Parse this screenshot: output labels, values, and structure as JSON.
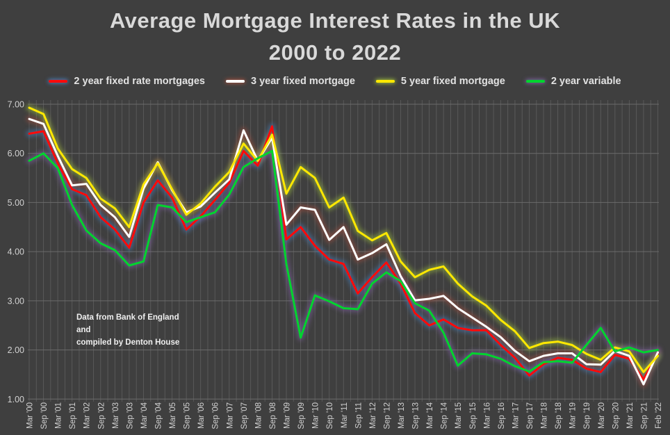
{
  "title": {
    "line1": "Average Mortgage Interest Rates in the UK",
    "line2": "2000 to 2022"
  },
  "annotation": {
    "line1": "Data from Bank of England and",
    "line2": "compiled by Denton House"
  },
  "colors": {
    "background": "#3f3f3f",
    "grid_vertical": "#5c5c5c",
    "grid_horizontal": "#6b6b6b",
    "axis_text": "#d2d2d2",
    "title_text": "#d9d9d9"
  },
  "chart_data": {
    "type": "line",
    "title": "Average Mortgage Interest Rates in the UK 2000 to 2022",
    "xlabel": "",
    "ylabel": "",
    "ylim": [
      1.0,
      7.0
    ],
    "y_ticks": [
      "7.00",
      "6.00",
      "5.00",
      "4.00",
      "3.00",
      "2.00",
      "1.00"
    ],
    "grid": "both",
    "legend_position": "top",
    "x_labels": [
      "Mar '00",
      "Sep '00",
      "Mar '01",
      "Sep '01",
      "Mar '02",
      "Sep '02",
      "Mar '03",
      "Sep '03",
      "Mar '04",
      "Sep '04",
      "Mar '05",
      "Sep '05",
      "Mar '06",
      "Sep '06",
      "Mar '07",
      "Sep '07",
      "Mar '08",
      "Sep '08",
      "Mar '09",
      "Sep '09",
      "Mar '10",
      "Sep '10",
      "Mar '11",
      "Sep '11",
      "Mar '12",
      "Sep '12",
      "Mar '13",
      "Sep '13",
      "Mar '14",
      "Sep '14",
      "Mar '15",
      "Sep '15",
      "Mar '16",
      "Sep '16",
      "Mar '17",
      "Sep '17",
      "Mar '18",
      "Sep '18",
      "Mar '19",
      "Sep '19",
      "Mar '20",
      "Sep '20",
      "Mar '21",
      "Sep '21",
      "Feb '22"
    ],
    "series": [
      {
        "name": "2 year fixed rate mortgages",
        "color": "#ff0a0a",
        "glow": "#4a7ebb",
        "values": [
          6.4,
          6.45,
          5.8,
          5.27,
          5.15,
          4.7,
          4.45,
          4.08,
          5.0,
          5.45,
          5.1,
          4.45,
          4.72,
          5.05,
          5.4,
          6.05,
          5.75,
          6.55,
          4.25,
          4.5,
          4.12,
          3.84,
          3.75,
          3.15,
          3.48,
          3.78,
          3.35,
          2.75,
          2.5,
          2.62,
          2.45,
          2.4,
          2.4,
          2.1,
          1.84,
          1.48,
          1.71,
          1.84,
          1.8,
          1.62,
          1.55,
          1.9,
          1.82,
          1.4,
          1.92
        ]
      },
      {
        "name": "3 year fixed mortgage",
        "color": "#ffffff",
        "glow": "#a3503f",
        "values": [
          6.7,
          6.6,
          5.95,
          5.35,
          5.38,
          4.95,
          4.7,
          4.3,
          5.28,
          5.82,
          5.25,
          4.8,
          4.92,
          5.2,
          5.47,
          6.47,
          5.85,
          6.32,
          4.55,
          4.9,
          4.85,
          4.24,
          4.5,
          3.84,
          3.97,
          4.15,
          3.5,
          3.01,
          3.04,
          3.1,
          2.85,
          2.66,
          2.47,
          2.26,
          1.98,
          1.77,
          1.88,
          1.93,
          1.93,
          1.71,
          1.7,
          1.98,
          1.88,
          1.3,
          1.95
        ]
      },
      {
        "name": "5 year fixed mortgage",
        "color": "#ffe800",
        "glow": "#9aba3f",
        "values": [
          6.93,
          6.8,
          6.1,
          5.68,
          5.5,
          5.08,
          4.88,
          4.5,
          5.37,
          5.8,
          5.27,
          4.75,
          4.98,
          5.32,
          5.62,
          6.2,
          5.85,
          6.38,
          5.18,
          5.72,
          5.5,
          4.9,
          5.1,
          4.42,
          4.23,
          4.38,
          3.8,
          3.48,
          3.63,
          3.7,
          3.35,
          3.09,
          2.9,
          2.61,
          2.38,
          2.04,
          2.14,
          2.17,
          2.1,
          1.92,
          1.8,
          2.05,
          1.97,
          1.55,
          1.88
        ]
      },
      {
        "name": "2 year variable",
        "color": "#00d42e",
        "glow": "#7d60a0",
        "values": [
          5.85,
          6.0,
          5.7,
          4.95,
          4.43,
          4.17,
          4.03,
          3.72,
          3.8,
          4.95,
          4.9,
          4.6,
          4.7,
          4.8,
          5.16,
          5.72,
          5.9,
          6.05,
          3.75,
          2.25,
          3.11,
          2.99,
          2.85,
          2.83,
          3.35,
          3.58,
          3.4,
          2.95,
          2.8,
          2.35,
          1.68,
          1.93,
          1.91,
          1.82,
          1.67,
          1.56,
          1.75,
          1.77,
          1.74,
          2.1,
          2.45,
          1.97,
          2.05,
          1.95,
          2.0
        ]
      }
    ]
  }
}
